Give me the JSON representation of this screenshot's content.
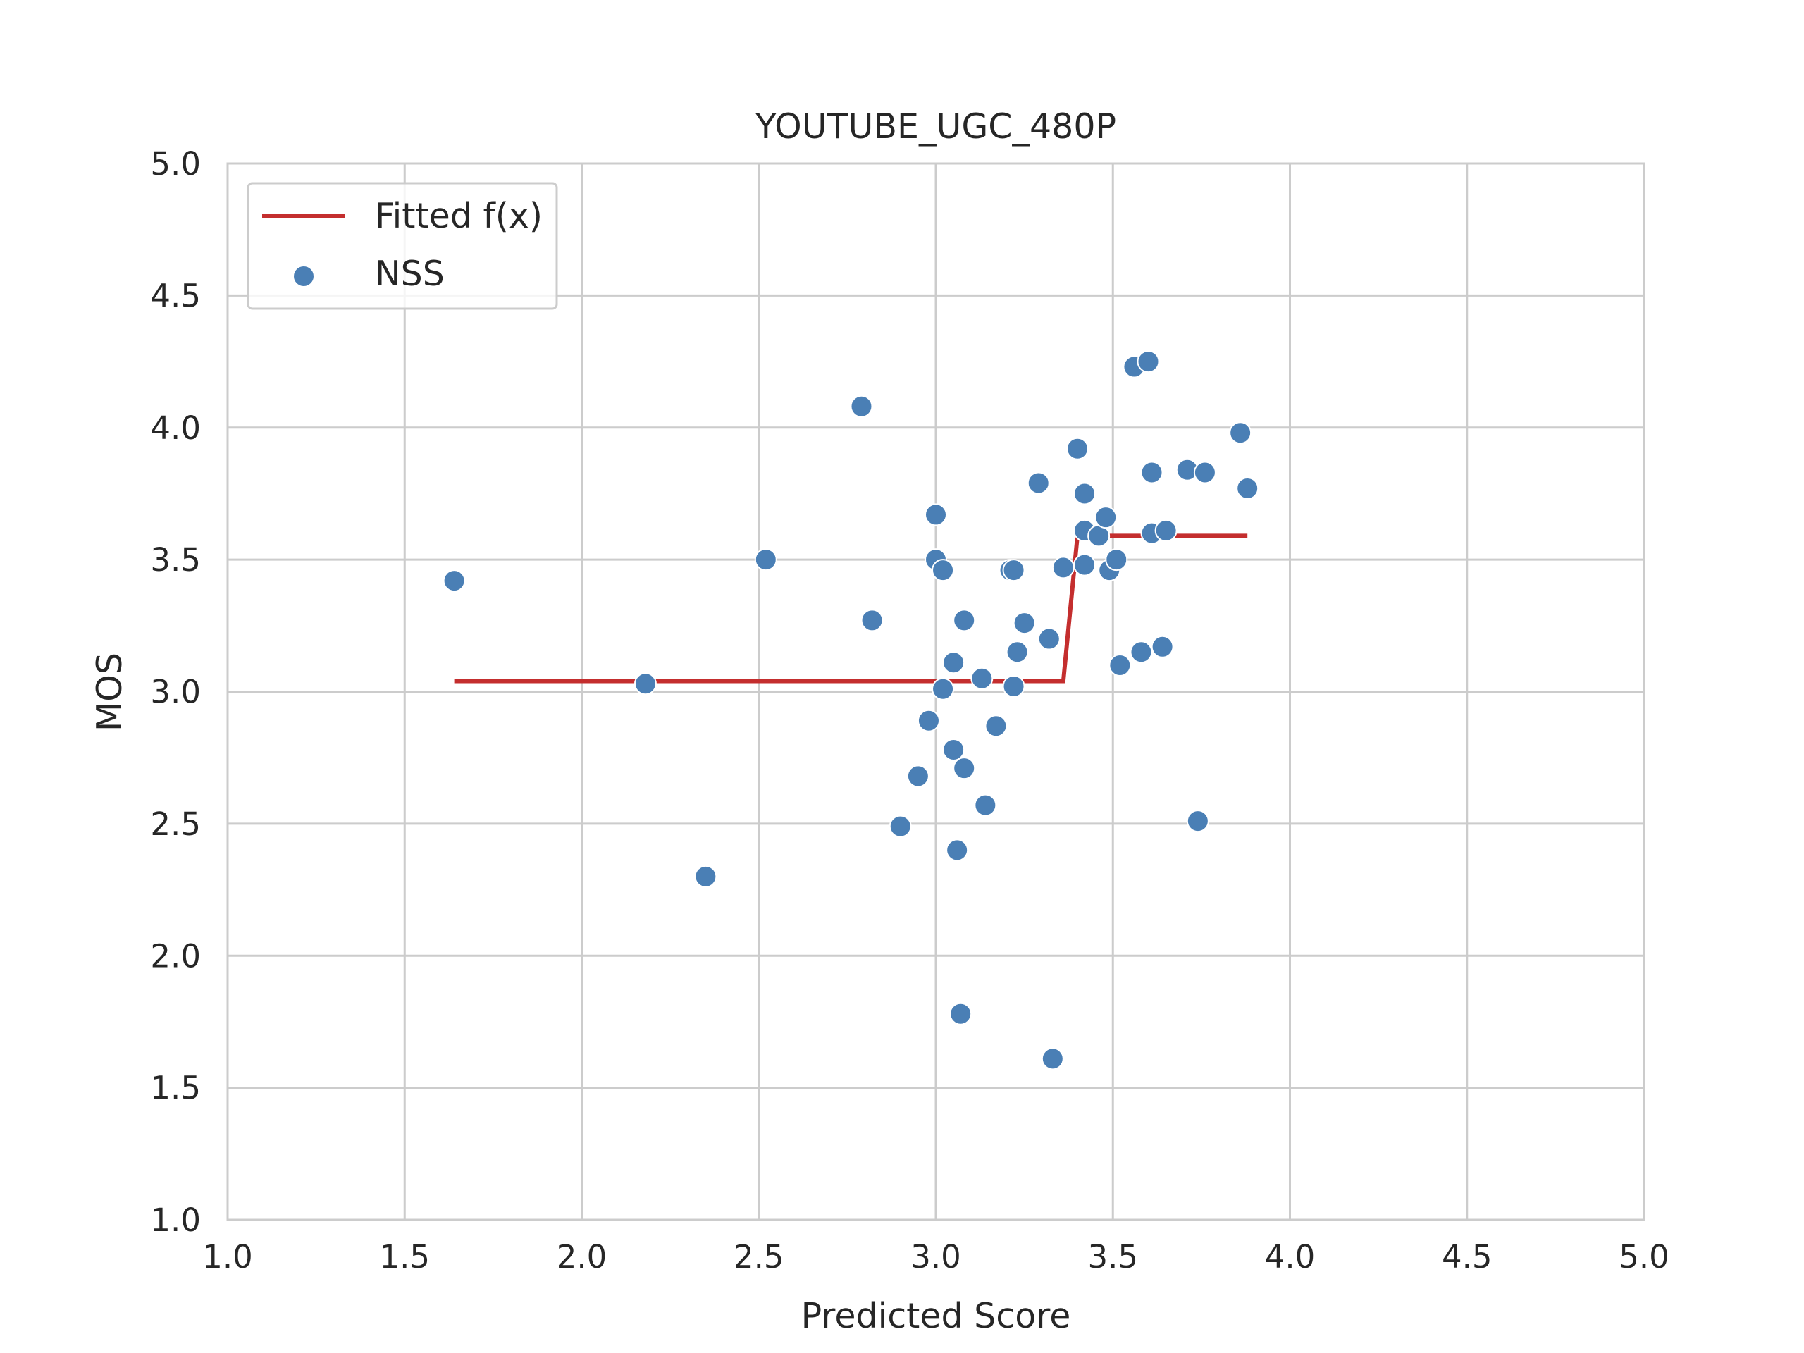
{
  "chart_data": {
    "type": "scatter",
    "title": "YOUTUBE_UGC_480P",
    "xlabel": "Predicted Score",
    "ylabel": "MOS",
    "xlim": [
      1.0,
      5.0
    ],
    "ylim": [
      1.0,
      5.0
    ],
    "xticks": [
      "1.0",
      "1.5",
      "2.0",
      "2.5",
      "3.0",
      "3.5",
      "4.0",
      "4.5",
      "5.0"
    ],
    "yticks": [
      "1.0",
      "1.5",
      "2.0",
      "2.5",
      "3.0",
      "3.5",
      "4.0",
      "4.5",
      "5.0"
    ],
    "grid": true,
    "legend": {
      "placement": "top-left",
      "entries": [
        "Fitted f(x)",
        "NSS"
      ]
    },
    "colors": {
      "fit": "#c42e2e",
      "points": "#4a7fb5",
      "grid": "#cccccc"
    },
    "series": [
      {
        "name": "Fitted f(x)",
        "kind": "line",
        "x": [
          1.64,
          3.36,
          3.4,
          3.88
        ],
        "y": [
          3.04,
          3.04,
          3.59,
          3.59
        ]
      },
      {
        "name": "NSS",
        "kind": "scatter",
        "points": [
          [
            1.64,
            3.42
          ],
          [
            2.18,
            3.03
          ],
          [
            2.35,
            2.3
          ],
          [
            2.52,
            3.5
          ],
          [
            2.79,
            4.08
          ],
          [
            2.82,
            3.27
          ],
          [
            2.9,
            2.49
          ],
          [
            2.95,
            2.68
          ],
          [
            2.98,
            2.89
          ],
          [
            3.0,
            3.67
          ],
          [
            3.0,
            3.5
          ],
          [
            3.02,
            3.46
          ],
          [
            3.02,
            3.01
          ],
          [
            3.05,
            3.11
          ],
          [
            3.05,
            2.78
          ],
          [
            3.06,
            2.4
          ],
          [
            3.07,
            1.78
          ],
          [
            3.08,
            3.27
          ],
          [
            3.08,
            2.71
          ],
          [
            3.13,
            3.05
          ],
          [
            3.14,
            2.57
          ],
          [
            3.17,
            2.87
          ],
          [
            3.21,
            3.46
          ],
          [
            3.22,
            3.46
          ],
          [
            3.22,
            3.02
          ],
          [
            3.23,
            3.15
          ],
          [
            3.25,
            3.26
          ],
          [
            3.29,
            3.79
          ],
          [
            3.32,
            3.2
          ],
          [
            3.33,
            1.61
          ],
          [
            3.36,
            3.47
          ],
          [
            3.4,
            3.92
          ],
          [
            3.42,
            3.75
          ],
          [
            3.42,
            3.61
          ],
          [
            3.42,
            3.48
          ],
          [
            3.46,
            3.59
          ],
          [
            3.48,
            3.66
          ],
          [
            3.49,
            3.46
          ],
          [
            3.51,
            3.5
          ],
          [
            3.52,
            3.1
          ],
          [
            3.56,
            4.23
          ],
          [
            3.58,
            3.15
          ],
          [
            3.6,
            4.25
          ],
          [
            3.61,
            3.83
          ],
          [
            3.61,
            3.6
          ],
          [
            3.64,
            3.17
          ],
          [
            3.65,
            3.61
          ],
          [
            3.71,
            3.84
          ],
          [
            3.74,
            2.51
          ],
          [
            3.76,
            3.83
          ],
          [
            3.86,
            3.98
          ],
          [
            3.88,
            3.77
          ]
        ]
      }
    ]
  }
}
